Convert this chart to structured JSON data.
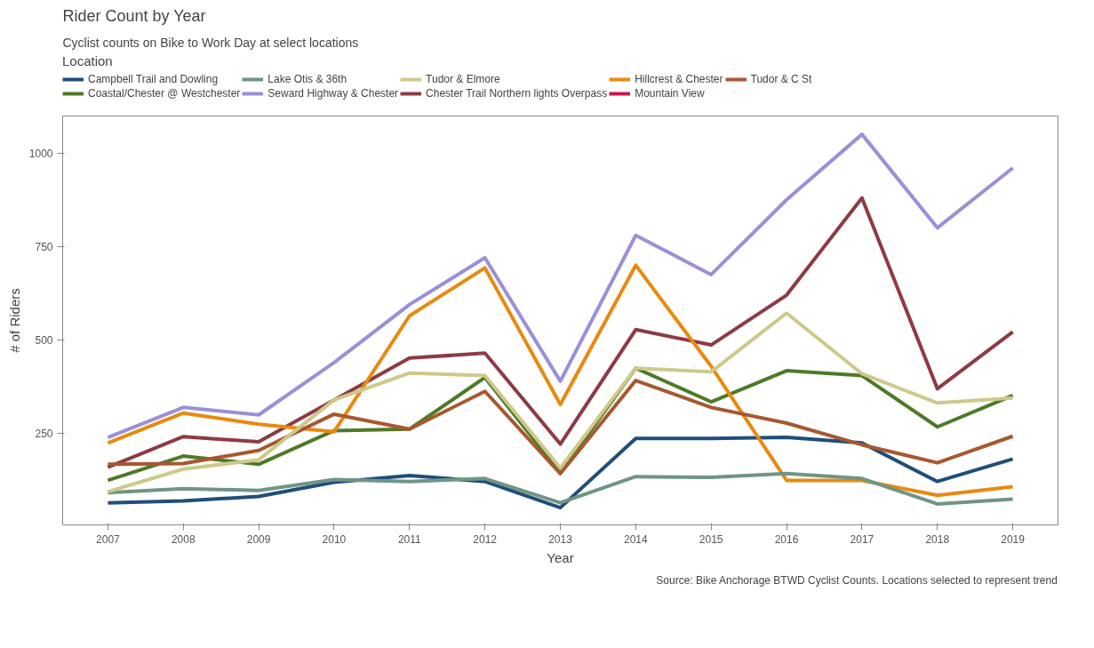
{
  "chart_data": {
    "type": "line",
    "title": "Rider Count by Year",
    "subtitle": "Cyclist counts on Bike to Work Day at select locations",
    "xlabel": "Year",
    "ylabel": "# of Riders",
    "legend_title": "Location",
    "legend": "top",
    "grid": false,
    "annotations": [
      "Source: Bike Anchorage BTWD Cyclist Counts. Locations selected to represent trend"
    ],
    "x": [
      2007,
      2008,
      2009,
      2010,
      2011,
      2012,
      2013,
      2014,
      2015,
      2016,
      2017,
      2018,
      2019
    ],
    "xlim": [
      2006.4,
      2019.6
    ],
    "xticks": [
      2007,
      2008,
      2009,
      2010,
      2011,
      2012,
      2013,
      2014,
      2015,
      2016,
      2017,
      2018,
      2019
    ],
    "ylim": [
      6,
      1099
    ],
    "yticks": [
      250,
      500,
      750,
      1000
    ],
    "series": [
      {
        "name": "Campbell Trail and Dowling",
        "color": "#1f4e79",
        "values": [
          65,
          70,
          82,
          120,
          138,
          122,
          52,
          237,
          237,
          240,
          225,
          122,
          182
        ]
      },
      {
        "name": "Chester Trail Northern lights Overpass",
        "color": "#8e3a45",
        "values": [
          160,
          242,
          228,
          340,
          452,
          465,
          222,
          528,
          487,
          620,
          880,
          370,
          522
        ]
      },
      {
        "name": "Coastal/Chester @ Westchester",
        "color": "#4e7a27",
        "values": [
          125,
          190,
          168,
          258,
          262,
          400,
          145,
          425,
          335,
          418,
          405,
          268,
          352
        ]
      },
      {
        "name": "Hillcrest & Chester",
        "color": "#e88a0f",
        "values": [
          225,
          305,
          275,
          255,
          565,
          693,
          328,
          700,
          430,
          125,
          125,
          85,
          108
        ]
      },
      {
        "name": "Lake Otis & 36th",
        "color": "#6f9585",
        "values": [
          92,
          103,
          98,
          127,
          122,
          130,
          65,
          135,
          133,
          143,
          130,
          62,
          75
        ]
      },
      {
        "name": "Mountain View",
        "color": "#c8174a",
        "values": [
          null,
          null,
          null,
          null,
          null,
          null,
          null,
          null,
          null,
          null,
          null,
          null,
          null
        ]
      },
      {
        "name": "Seward Highway & Chester",
        "color": "#9a90d8",
        "values": [
          240,
          320,
          300,
          440,
          595,
          720,
          390,
          780,
          675,
          875,
          1050,
          800,
          960
        ]
      },
      {
        "name": "Tudor & C St",
        "color": "#a8572f",
        "values": [
          168,
          170,
          205,
          302,
          262,
          363,
          143,
          392,
          320,
          278,
          220,
          172,
          243
        ]
      },
      {
        "name": "Tudor & Elmore",
        "color": "#cdc98a",
        "values": [
          95,
          155,
          180,
          340,
          412,
          405,
          158,
          425,
          415,
          572,
          410,
          332,
          345
        ]
      }
    ]
  }
}
